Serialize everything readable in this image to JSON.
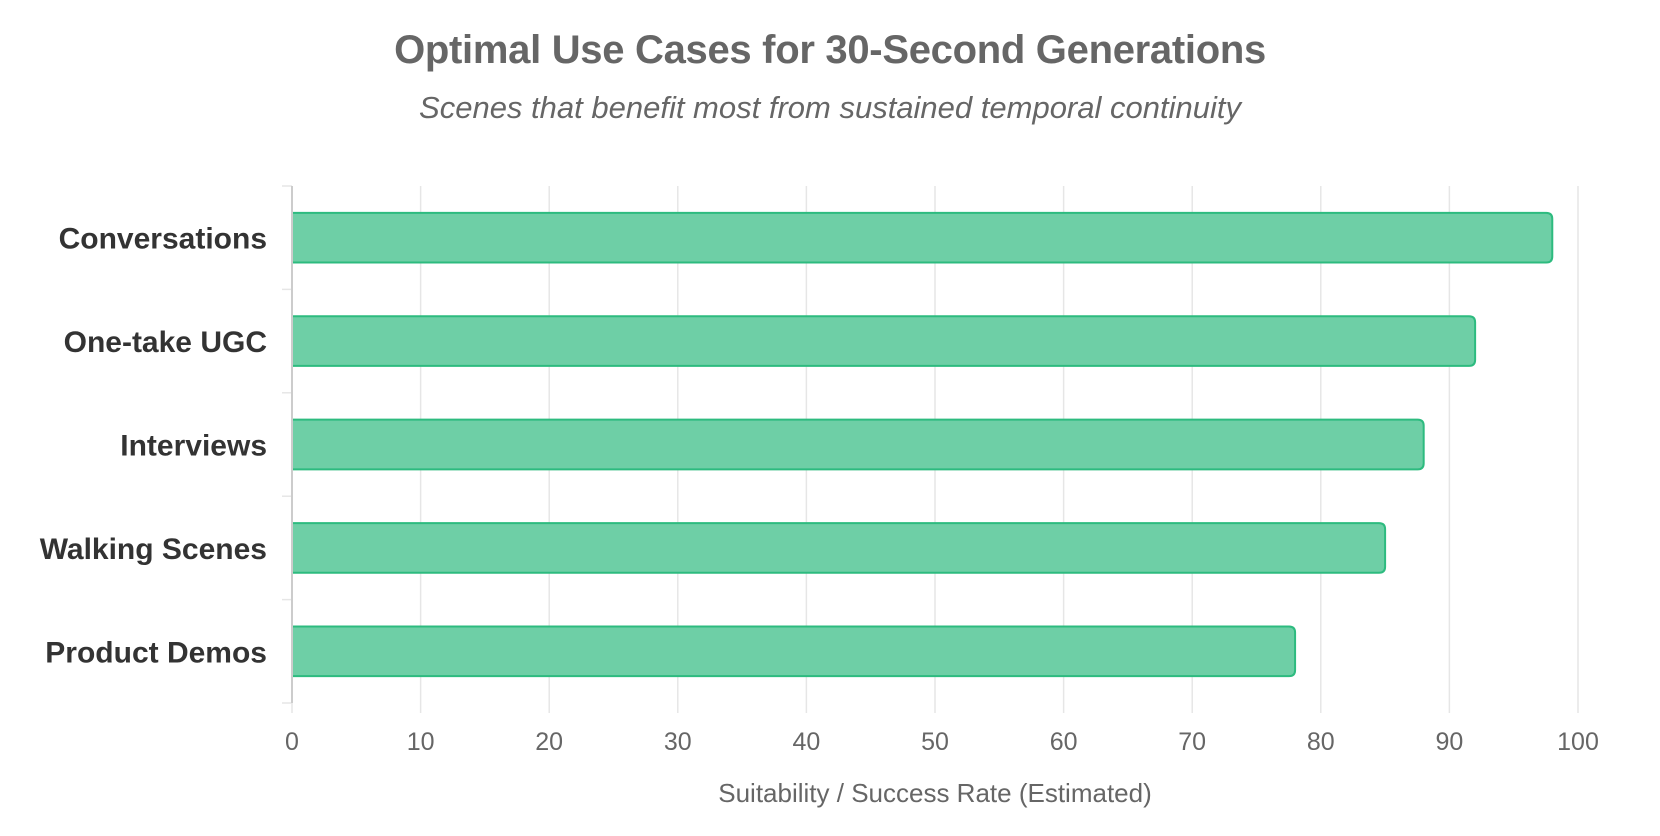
{
  "title": "Optimal Use Cases for 30-Second Generations",
  "subtitle": "Scenes that benefit most from sustained temporal continuity",
  "chart_data": {
    "type": "bar",
    "orientation": "horizontal",
    "categories": [
      "Conversations",
      "One-take UGC",
      "Interviews",
      "Walking Scenes",
      "Product Demos"
    ],
    "values": [
      98,
      92,
      88,
      85,
      78
    ],
    "title": "Optimal Use Cases for 30-Second Generations",
    "subtitle": "Scenes that benefit most from sustained temporal continuity",
    "xlabel": "Suitability / Success Rate (Estimated)",
    "ylabel": "",
    "xlim": [
      0,
      100
    ],
    "xticks": [
      0,
      10,
      20,
      30,
      40,
      50,
      60,
      70,
      80,
      90,
      100
    ],
    "grid": true,
    "legend": "none",
    "bar_fill_color": "#6ecfa6",
    "bar_border_color": "#2dbb7f",
    "grid_color": "#e6e6e6",
    "axis_color": "#cccccc",
    "text_color": "#666666",
    "category_label_color": "#333333"
  }
}
